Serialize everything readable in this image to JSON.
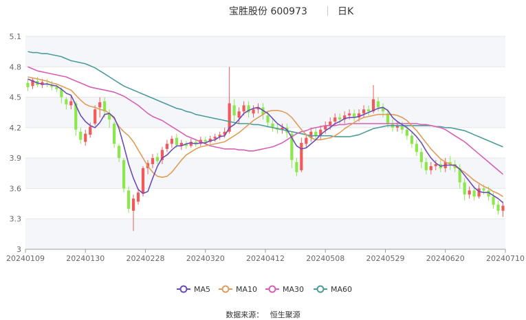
{
  "header": {
    "title": "宝胜股份 600973",
    "period": "日K"
  },
  "footer": {
    "source_label": "数据来源：",
    "source_name": "恒生聚源"
  },
  "colors": {
    "up": "#f05a5a",
    "down": "#8be84a",
    "MA5": "#6a4bb5",
    "MA10": "#e09b57",
    "MA30": "#d65fb4",
    "MA60": "#4a9b9b",
    "axis": "#d9d9d9",
    "band": "#f4f6fa"
  },
  "chart_data": {
    "type": "candlestick",
    "title": "宝胜股份 600973",
    "ylim": [
      3.0,
      5.1
    ],
    "yticks": [
      "5.1",
      "4.8",
      "4.5",
      "4.2",
      "3.9",
      "3.6",
      "3.3",
      "3"
    ],
    "xticks": [
      "20240109",
      "20240130",
      "20240228",
      "20240320",
      "20240412",
      "20240508",
      "20240529",
      "20240620",
      "20240710"
    ],
    "legend": [
      "MA5",
      "MA10",
      "MA30",
      "MA60"
    ],
    "legend_position": "bottom",
    "candles": [
      [
        4.64,
        4.6,
        4.68,
        4.56
      ],
      [
        4.61,
        4.67,
        4.69,
        4.58
      ],
      [
        4.66,
        4.62,
        4.7,
        4.6
      ],
      [
        4.62,
        4.65,
        4.68,
        4.59
      ],
      [
        4.64,
        4.63,
        4.68,
        4.6
      ],
      [
        4.62,
        4.6,
        4.66,
        4.57
      ],
      [
        4.6,
        4.58,
        4.63,
        4.55
      ],
      [
        4.58,
        4.5,
        4.6,
        4.44
      ],
      [
        4.48,
        4.43,
        4.5,
        4.38
      ],
      [
        4.42,
        4.46,
        4.52,
        4.38
      ],
      [
        4.44,
        4.18,
        4.46,
        4.12
      ],
      [
        4.16,
        4.08,
        4.2,
        4.04
      ],
      [
        4.06,
        4.14,
        4.18,
        4.02
      ],
      [
        4.13,
        4.21,
        4.25,
        4.1
      ],
      [
        4.24,
        4.38,
        4.42,
        4.22
      ],
      [
        4.4,
        4.45,
        4.5,
        4.3
      ],
      [
        4.46,
        4.36,
        4.5,
        4.3
      ],
      [
        4.34,
        4.28,
        4.38,
        4.2
      ],
      [
        4.24,
        4.04,
        4.26,
        4.0
      ],
      [
        4.02,
        3.9,
        4.04,
        3.86
      ],
      [
        3.88,
        3.6,
        3.9,
        3.56
      ],
      [
        3.58,
        3.4,
        3.62,
        3.36
      ],
      [
        3.38,
        3.5,
        3.54,
        3.18
      ],
      [
        3.47,
        3.56,
        3.6,
        3.44
      ],
      [
        3.55,
        3.8,
        3.82,
        3.52
      ],
      [
        3.8,
        3.85,
        3.88,
        3.74
      ],
      [
        3.84,
        3.9,
        3.94,
        3.8
      ],
      [
        3.91,
        3.87,
        3.95,
        3.84
      ],
      [
        3.88,
        3.98,
        4.01,
        3.84
      ],
      [
        3.99,
        4.04,
        4.08,
        3.96
      ],
      [
        4.04,
        4.09,
        4.12,
        4.0
      ],
      [
        4.1,
        4.03,
        4.14,
        4.0
      ],
      [
        4.02,
        4.05,
        4.08,
        3.98
      ],
      [
        4.04,
        4.02,
        4.07,
        3.99
      ],
      [
        4.02,
        4.06,
        4.09,
        4.0
      ],
      [
        4.06,
        4.04,
        4.09,
        4.01
      ],
      [
        4.04,
        4.08,
        4.11,
        4.02
      ],
      [
        4.08,
        4.06,
        4.11,
        4.04
      ],
      [
        4.06,
        4.09,
        4.12,
        4.04
      ],
      [
        4.09,
        4.11,
        4.14,
        4.06
      ],
      [
        4.11,
        4.13,
        4.16,
        4.08
      ],
      [
        4.13,
        4.16,
        4.2,
        4.1
      ],
      [
        4.16,
        4.44,
        4.8,
        4.14
      ],
      [
        4.42,
        4.32,
        4.48,
        4.26
      ],
      [
        4.3,
        4.36,
        4.4,
        4.24
      ],
      [
        4.36,
        4.42,
        4.46,
        4.32
      ],
      [
        4.42,
        4.35,
        4.46,
        4.3
      ],
      [
        4.34,
        4.38,
        4.42,
        4.3
      ],
      [
        4.38,
        4.4,
        4.44,
        4.34
      ],
      [
        4.4,
        4.33,
        4.44,
        4.28
      ],
      [
        4.32,
        4.25,
        4.36,
        4.2
      ],
      [
        4.24,
        4.2,
        4.28,
        4.16
      ],
      [
        4.2,
        4.18,
        4.24,
        4.14
      ],
      [
        4.18,
        4.2,
        4.24,
        4.14
      ],
      [
        4.2,
        4.15,
        4.24,
        4.1
      ],
      [
        4.14,
        3.88,
        4.16,
        3.8
      ],
      [
        3.86,
        3.76,
        3.9,
        3.72
      ],
      [
        3.78,
        4.05,
        4.1,
        3.76
      ],
      [
        4.04,
        4.1,
        4.14,
        4.0
      ],
      [
        4.1,
        4.16,
        4.2,
        4.06
      ],
      [
        4.16,
        4.12,
        4.2,
        4.08
      ],
      [
        4.12,
        4.18,
        4.22,
        4.08
      ],
      [
        4.18,
        4.22,
        4.26,
        4.14
      ],
      [
        4.22,
        4.26,
        4.3,
        4.18
      ],
      [
        4.26,
        4.3,
        4.34,
        4.22
      ],
      [
        4.3,
        4.28,
        4.34,
        4.24
      ],
      [
        4.28,
        4.32,
        4.36,
        4.24
      ],
      [
        4.32,
        4.34,
        4.38,
        4.28
      ],
      [
        4.34,
        4.3,
        4.38,
        4.26
      ],
      [
        4.3,
        4.34,
        4.38,
        4.26
      ],
      [
        4.34,
        4.38,
        4.42,
        4.3
      ],
      [
        4.38,
        4.36,
        4.42,
        4.32
      ],
      [
        4.36,
        4.48,
        4.62,
        4.34
      ],
      [
        4.46,
        4.4,
        4.5,
        4.36
      ],
      [
        4.4,
        4.36,
        4.44,
        4.3
      ],
      [
        4.34,
        4.24,
        4.38,
        4.2
      ],
      [
        4.24,
        4.2,
        4.28,
        4.16
      ],
      [
        4.2,
        4.22,
        4.26,
        4.16
      ],
      [
        4.22,
        4.18,
        4.26,
        4.14
      ],
      [
        4.18,
        4.12,
        4.22,
        4.08
      ],
      [
        4.12,
        4.04,
        4.16,
        4.0
      ],
      [
        4.04,
        3.96,
        4.08,
        3.92
      ],
      [
        3.96,
        3.86,
        4.0,
        3.8
      ],
      [
        3.86,
        3.78,
        3.9,
        3.74
      ],
      [
        3.78,
        3.82,
        3.86,
        3.74
      ],
      [
        3.82,
        3.84,
        3.88,
        3.78
      ],
      [
        3.84,
        3.8,
        3.88,
        3.76
      ],
      [
        3.8,
        3.86,
        3.9,
        3.76
      ],
      [
        3.86,
        3.84,
        3.92,
        3.78
      ],
      [
        3.84,
        3.8,
        3.88,
        3.76
      ],
      [
        3.8,
        3.66,
        3.84,
        3.6
      ],
      [
        3.66,
        3.54,
        3.7,
        3.48
      ],
      [
        3.54,
        3.58,
        3.62,
        3.5
      ],
      [
        3.58,
        3.52,
        3.62,
        3.48
      ],
      [
        3.52,
        3.6,
        3.64,
        3.5
      ],
      [
        3.6,
        3.58,
        3.64,
        3.54
      ],
      [
        3.58,
        3.52,
        3.62,
        3.48
      ],
      [
        3.52,
        3.44,
        3.56,
        3.4
      ],
      [
        3.44,
        3.38,
        3.48,
        3.34
      ],
      [
        3.38,
        3.43,
        3.47,
        3.32
      ]
    ],
    "MA5": [
      4.68,
      4.66,
      4.64,
      4.63,
      4.63,
      4.62,
      4.61,
      4.58,
      4.54,
      4.52,
      4.42,
      4.32,
      4.26,
      4.22,
      4.2,
      4.25,
      4.33,
      4.34,
      4.3,
      4.19,
      4.02,
      3.84,
      3.7,
      3.59,
      3.55,
      3.57,
      3.7,
      3.82,
      3.9,
      3.93,
      3.98,
      4.02,
      4.02,
      4.04,
      4.05,
      4.04,
      4.05,
      4.05,
      4.07,
      4.08,
      4.11,
      4.12,
      4.2,
      4.23,
      4.28,
      4.34,
      4.37,
      4.39,
      4.4,
      4.37,
      4.34,
      4.29,
      4.24,
      4.21,
      4.18,
      4.1,
      4.02,
      3.99,
      4.0,
      4.04,
      4.08,
      4.13,
      4.17,
      4.2,
      4.24,
      4.26,
      4.29,
      4.3,
      4.3,
      4.31,
      4.33,
      4.35,
      4.37,
      4.39,
      4.4,
      4.37,
      4.3,
      4.26,
      4.23,
      4.2,
      4.16,
      4.11,
      4.05,
      3.97,
      3.9,
      3.85,
      3.82,
      3.83,
      3.83,
      3.83,
      3.79,
      3.73,
      3.67,
      3.61,
      3.57,
      3.56,
      3.56,
      3.53,
      3.5,
      3.46
    ],
    "MA10": [
      4.7,
      4.69,
      4.68,
      4.67,
      4.66,
      4.64,
      4.63,
      4.61,
      4.59,
      4.57,
      4.52,
      4.47,
      4.43,
      4.41,
      4.4,
      4.38,
      4.37,
      4.34,
      4.29,
      4.21,
      4.16,
      4.12,
      4.06,
      3.98,
      3.9,
      3.82,
      3.76,
      3.72,
      3.71,
      3.72,
      3.76,
      3.82,
      3.88,
      3.93,
      3.96,
      3.99,
      4.01,
      4.02,
      4.03,
      4.04,
      4.05,
      4.06,
      4.09,
      4.12,
      4.15,
      4.19,
      4.23,
      4.27,
      4.3,
      4.33,
      4.36,
      4.37,
      4.37,
      4.36,
      4.34,
      4.3,
      4.24,
      4.18,
      4.13,
      4.1,
      4.08,
      4.08,
      4.09,
      4.1,
      4.12,
      4.15,
      4.19,
      4.22,
      4.25,
      4.28,
      4.3,
      4.31,
      4.32,
      4.33,
      4.33,
      4.33,
      4.33,
      4.32,
      4.3,
      4.27,
      4.22,
      4.17,
      4.11,
      4.05,
      3.99,
      3.94,
      3.89,
      3.86,
      3.84,
      3.82,
      3.79,
      3.76,
      3.72,
      3.68,
      3.65,
      3.62,
      3.6,
      3.57,
      3.55,
      3.52
    ],
    "MA30": [
      4.8,
      4.78,
      4.76,
      4.75,
      4.74,
      4.73,
      4.72,
      4.71,
      4.7,
      4.68,
      4.66,
      4.64,
      4.62,
      4.6,
      4.59,
      4.58,
      4.57,
      4.56,
      4.55,
      4.53,
      4.51,
      4.48,
      4.45,
      4.42,
      4.38,
      4.34,
      4.31,
      4.29,
      4.27,
      4.24,
      4.21,
      4.18,
      4.15,
      4.12,
      4.1,
      4.08,
      4.06,
      4.04,
      4.02,
      4.01,
      4.0,
      3.99,
      3.99,
      3.99,
      3.98,
      3.98,
      3.97,
      3.97,
      3.98,
      3.99,
      4.0,
      4.01,
      4.03,
      4.05,
      4.08,
      4.11,
      4.14,
      4.16,
      4.17,
      4.19,
      4.2,
      4.21,
      4.22,
      4.22,
      4.22,
      4.23,
      4.23,
      4.24,
      4.24,
      4.24,
      4.24,
      4.24,
      4.24,
      4.24,
      4.24,
      4.24,
      4.24,
      4.24,
      4.24,
      4.24,
      4.24,
      4.24,
      4.23,
      4.23,
      4.22,
      4.21,
      4.2,
      4.18,
      4.15,
      4.12,
      4.09,
      4.06,
      4.02,
      3.98,
      3.94,
      3.9,
      3.86,
      3.82,
      3.78,
      3.74
    ],
    "MA60": [
      4.95,
      4.94,
      4.94,
      4.93,
      4.93,
      4.92,
      4.91,
      4.9,
      4.88,
      4.86,
      4.85,
      4.84,
      4.83,
      4.81,
      4.79,
      4.76,
      4.73,
      4.7,
      4.67,
      4.64,
      4.61,
      4.59,
      4.57,
      4.55,
      4.53,
      4.51,
      4.49,
      4.47,
      4.45,
      4.43,
      4.41,
      4.39,
      4.38,
      4.36,
      4.35,
      4.33,
      4.32,
      4.31,
      4.3,
      4.29,
      4.28,
      4.27,
      4.26,
      4.25,
      4.24,
      4.24,
      4.24,
      4.23,
      4.23,
      4.22,
      4.21,
      4.2,
      4.19,
      4.18,
      4.17,
      4.16,
      4.15,
      4.14,
      4.13,
      4.12,
      4.12,
      4.12,
      4.12,
      4.12,
      4.11,
      4.11,
      4.11,
      4.11,
      4.12,
      4.13,
      4.15,
      4.17,
      4.19,
      4.2,
      4.21,
      4.22,
      4.22,
      4.22,
      4.22,
      4.22,
      4.22,
      4.22,
      4.22,
      4.22,
      4.22,
      4.21,
      4.21,
      4.2,
      4.2,
      4.19,
      4.18,
      4.17,
      4.15,
      4.13,
      4.11,
      4.09,
      4.07,
      4.05,
      4.03,
      4.01
    ]
  }
}
